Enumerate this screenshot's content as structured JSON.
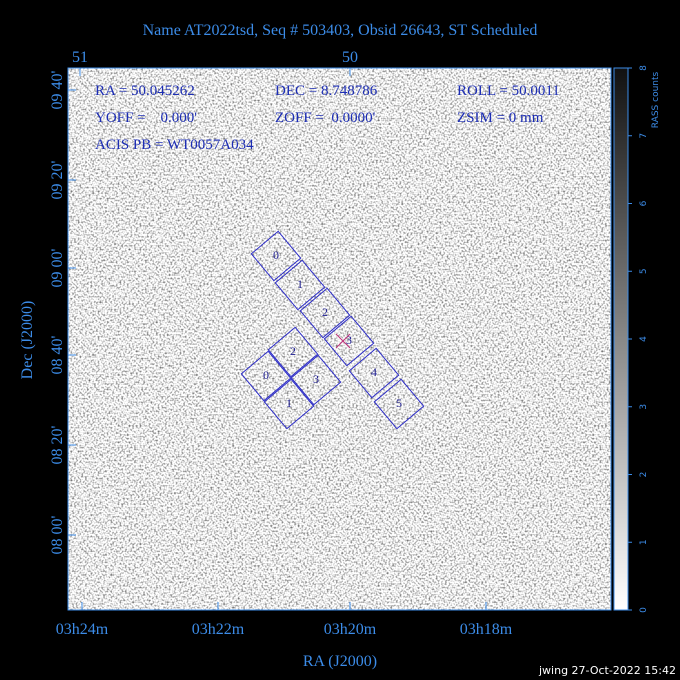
{
  "title": "Name AT2022tsd, Seq # 503403, Obsid 26643, ST Scheduled",
  "top_axis": {
    "ticks": [
      "51",
      "50"
    ]
  },
  "info": {
    "ra": "RA = 50.045262",
    "dec": "DEC = 8.748786",
    "roll": "ROLL = 50.0011",
    "yoff": "YOFF =    0.000'",
    "zoff": "ZOFF =  0.0000'",
    "zsim": "ZSIM = 0 mm",
    "acis_pb": "ACIS PB = WT0057A034"
  },
  "y_axis": {
    "label": "Dec (J2000)",
    "ticks": [
      "09 40'",
      "09 20'",
      "09 00'",
      "08 40'",
      "08 20'",
      "08 00'"
    ]
  },
  "x_axis": {
    "label": "RA (J2000)",
    "ticks": [
      "03h24m",
      "03h22m",
      "03h20m",
      "03h18m"
    ]
  },
  "colorbar": {
    "label": "RASS counts",
    "ticks": [
      "0",
      "1",
      "2",
      "3",
      "4",
      "5",
      "6",
      "7",
      "8"
    ]
  },
  "ccds": {
    "s_array": [
      "0",
      "1",
      "2",
      "3",
      "4",
      "5"
    ],
    "i_array": [
      "0",
      "1",
      "2",
      "3"
    ]
  },
  "footer": "jwing 27-Oct-2022 15:42"
}
